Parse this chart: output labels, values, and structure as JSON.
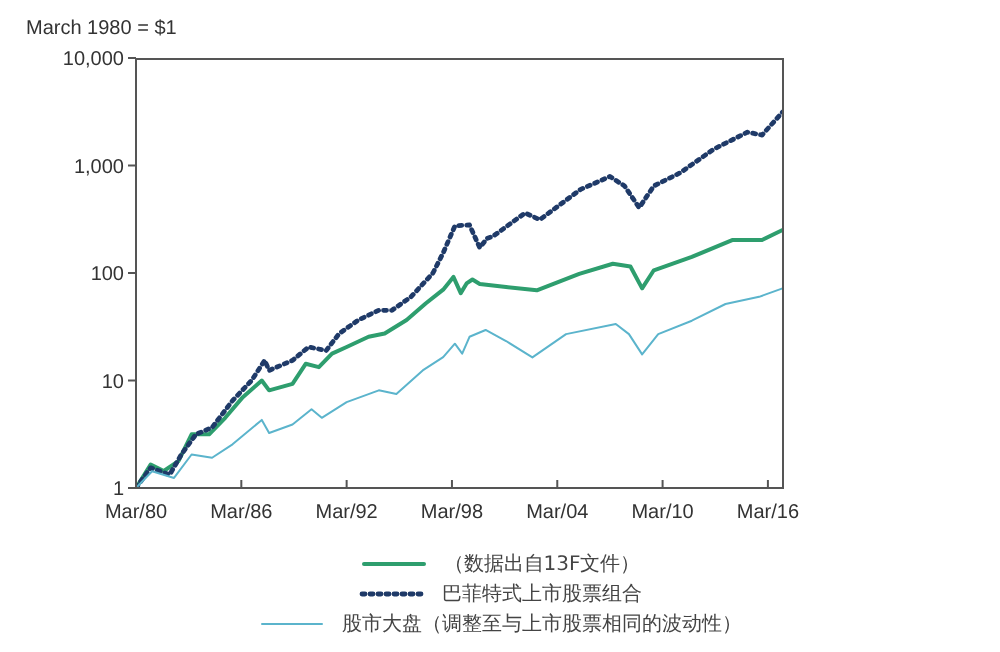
{
  "chart_data": {
    "type": "line",
    "ylabel": "March 1980 = $1",
    "log": "y",
    "legend": "bottom",
    "marker": "none",
    "xlim": [
      "1980-03",
      "2017-02"
    ],
    "xticks": [
      {
        "value": "1980-03",
        "label": "Mar/80"
      },
      {
        "value": "1986-03",
        "label": "Mar/86"
      },
      {
        "value": "1992-03",
        "label": "Mar/92"
      },
      {
        "value": "1998-03",
        "label": "Mar/98"
      },
      {
        "value": "2004-03",
        "label": "Mar/04"
      },
      {
        "value": "2010-03",
        "label": "Mar/10"
      },
      {
        "value": "2016-03",
        "label": "Mar/16"
      }
    ],
    "ylim": [
      1,
      10000
    ],
    "yticks": [
      1,
      10,
      100,
      {
        "value": 1000,
        "label": "1,000"
      },
      {
        "value": 10000,
        "label": "10,000"
      }
    ],
    "series": [
      {
        "name": "（数据出自13F文件）",
        "color": "#2e9e6e",
        "line_style": "solid",
        "x": [
          "1980-03",
          "1981-01",
          "1981-10",
          "1982-08",
          "1983-05",
          "1984-05",
          "1985-04",
          "1986-04",
          "1987-05",
          "1987-10",
          "1989-02",
          "1989-11",
          "1990-08",
          "1991-05",
          "1992-03",
          "1993-06",
          "1994-05",
          "1995-08",
          "1996-09",
          "1997-09",
          "1998-04",
          "1998-09",
          "1999-01",
          "1999-05",
          "1999-10",
          "2001-04",
          "2003-01",
          "2005-06",
          "2007-05",
          "2008-05",
          "2009-01",
          "2009-09",
          "2011-11",
          "2014-03",
          "2015-11",
          "2017-01"
        ],
        "values": [
          1,
          1.65,
          1.44,
          1.78,
          3.16,
          3.16,
          4.5,
          7,
          10,
          8.1,
          9.3,
          14.3,
          13.3,
          17.8,
          20.5,
          25.5,
          27.4,
          36.5,
          52,
          70,
          92,
          65,
          80,
          87,
          79,
          74,
          69,
          98,
          122,
          115,
          72,
          106,
          141,
          203,
          203,
          251
        ]
      },
      {
        "name": "巴菲特式上市股票组合",
        "color": "#1f3a68",
        "line_style": "dotted",
        "x": [
          "1980-03",
          "1981-01",
          "1982-02",
          "1982-10",
          "1983-08",
          "1984-07",
          "1985-09",
          "1986-10",
          "1987-07",
          "1987-10",
          "1989-02",
          "1990-01",
          "1991-01",
          "1991-10",
          "1992-11",
          "1994-01",
          "1994-10",
          "1995-11",
          "1997-02",
          "1997-09",
          "1998-05",
          "1999-03",
          "1999-10",
          "2000-03",
          "2000-07",
          "2002-05",
          "2003-03",
          "2005-07",
          "2007-03",
          "2008-01",
          "2008-11",
          "2009-09",
          "2011-03",
          "2013-02",
          "2015-01",
          "2015-11",
          "2017-01"
        ],
        "values": [
          1,
          1.54,
          1.33,
          2.05,
          3.16,
          3.65,
          6.5,
          10,
          15.4,
          12.4,
          15.4,
          20.5,
          19,
          27.4,
          36.5,
          45,
          45,
          60,
          100,
          154,
          274,
          280,
          172,
          210,
          219,
          362,
          313,
          600,
          790,
          645,
          405,
          645,
          855,
          1420,
          2040,
          1920,
          3140
        ]
      },
      {
        "name": "股市大盘（调整至与上市股票相同的波动性）",
        "color": "#5bb4cc",
        "line_style": "solid",
        "x": [
          "1980-03",
          "1981-02",
          "1982-05",
          "1983-05",
          "1984-07",
          "1985-09",
          "1987-05",
          "1987-10",
          "1989-02",
          "1990-03",
          "1990-10",
          "1992-03",
          "1994-01",
          "1995-01",
          "1996-07",
          "1997-09",
          "1998-05",
          "1998-10",
          "1999-03",
          "2000-02",
          "2001-04",
          "2002-10",
          "2004-09",
          "2007-07",
          "2008-04",
          "2009-01",
          "2009-12",
          "2011-11",
          "2013-10",
          "2015-09",
          "2017-01"
        ],
        "values": [
          1,
          1.43,
          1.24,
          2.05,
          1.91,
          2.55,
          4.3,
          3.25,
          3.9,
          5.4,
          4.5,
          6.3,
          8.1,
          7.5,
          12.4,
          16.5,
          22,
          17.8,
          25.5,
          29.5,
          23.3,
          16.4,
          27,
          33.5,
          27,
          17.5,
          27,
          36,
          51.5,
          60,
          72
        ]
      }
    ]
  }
}
